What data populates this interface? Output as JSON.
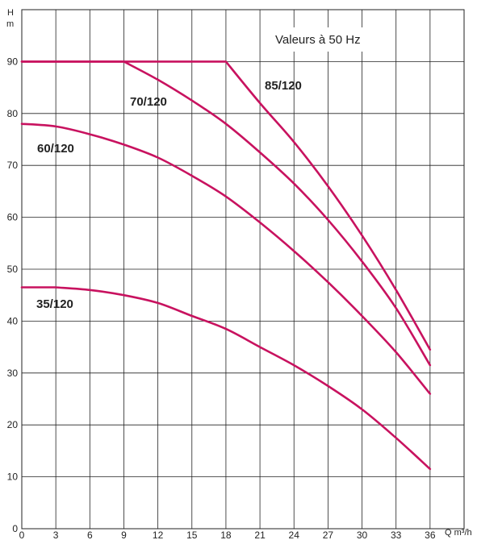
{
  "chart_data": {
    "type": "line",
    "xlabel": "Q m³/h",
    "ylabel_top": "H",
    "ylabel_bottom": "m",
    "xlim": [
      0,
      39
    ],
    "ylim": [
      0,
      100
    ],
    "xticks": [
      0,
      3,
      6,
      9,
      12,
      15,
      18,
      21,
      24,
      27,
      30,
      33,
      36
    ],
    "yticks": [
      0,
      10,
      20,
      30,
      40,
      50,
      60,
      70,
      80,
      90
    ],
    "grid": true,
    "line_color": "#c8125f",
    "annotation": "Valeurs à 50 Hz",
    "series": [
      {
        "name": "85/120",
        "x": [
          0,
          18,
          21,
          24,
          27,
          30,
          33,
          36
        ],
        "y": [
          90,
          90,
          82,
          74.5,
          66,
          56.5,
          46,
          34.5
        ]
      },
      {
        "name": "70/120",
        "x": [
          0,
          9,
          12,
          15,
          18,
          21,
          24,
          27,
          30,
          33,
          36
        ],
        "y": [
          90,
          90,
          86.5,
          82.5,
          78,
          72.5,
          66.5,
          59.5,
          51.5,
          42.5,
          31.5
        ]
      },
      {
        "name": "60/120",
        "x": [
          0,
          3,
          6,
          9,
          12,
          15,
          18,
          21,
          24,
          27,
          30,
          33,
          36
        ],
        "y": [
          78,
          77.5,
          76,
          74,
          71.5,
          68,
          64,
          59,
          53.5,
          47.5,
          41,
          34,
          26
        ]
      },
      {
        "name": "35/120",
        "x": [
          0,
          3,
          6,
          9,
          12,
          15,
          18,
          21,
          24,
          27,
          30,
          33,
          36
        ],
        "y": [
          46.5,
          46.5,
          46,
          45,
          43.5,
          41,
          38.5,
          35,
          31.5,
          27.5,
          23,
          17.5,
          11.5
        ]
      }
    ]
  }
}
